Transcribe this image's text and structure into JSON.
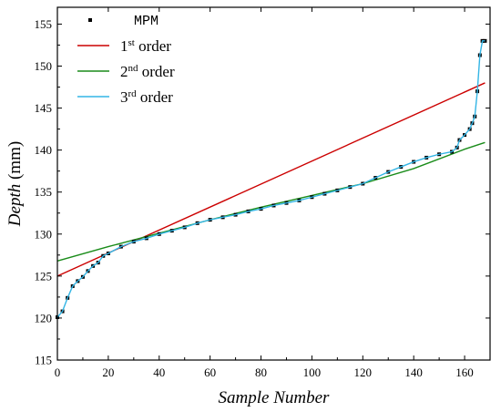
{
  "chart_data": {
    "type": "scatter",
    "xlabel": "Sample Number",
    "ylabel": "Depth",
    "ylabel_unit": "(mm)",
    "xlim": [
      0,
      170
    ],
    "ylim": [
      115,
      157
    ],
    "xticks": [
      0,
      20,
      40,
      60,
      80,
      100,
      120,
      140,
      160
    ],
    "yticks": [
      115,
      120,
      125,
      130,
      135,
      140,
      145,
      150,
      155
    ],
    "legend_position": "top-left",
    "series": [
      {
        "name": "MPM",
        "kind": "points",
        "color": "#000000",
        "x": [
          0,
          2,
          4,
          6,
          8,
          10,
          12,
          14,
          16,
          18,
          20,
          25,
          30,
          35,
          40,
          45,
          50,
          55,
          60,
          65,
          70,
          75,
          80,
          85,
          90,
          95,
          100,
          105,
          110,
          115,
          120,
          125,
          130,
          135,
          140,
          145,
          150,
          155,
          157,
          158,
          160,
          162,
          163,
          164,
          165,
          166,
          167,
          168
        ],
        "y": [
          120.1,
          120.8,
          122.4,
          123.8,
          124.4,
          124.9,
          125.6,
          126.2,
          126.6,
          127.4,
          127.7,
          128.5,
          129.1,
          129.5,
          130.0,
          130.4,
          130.8,
          131.3,
          131.7,
          132.0,
          132.3,
          132.7,
          133.0,
          133.4,
          133.7,
          134.0,
          134.4,
          134.8,
          135.2,
          135.6,
          136.0,
          136.7,
          137.4,
          138.0,
          138.6,
          139.1,
          139.5,
          139.8,
          140.3,
          141.2,
          141.8,
          142.5,
          143.2,
          144.0,
          147.0,
          151.3,
          153.0,
          153.0
        ]
      },
      {
        "name": "1st order",
        "kind": "line",
        "color": "#cc0000",
        "x": [
          0,
          168
        ],
        "y": [
          125.0,
          148.0
        ]
      },
      {
        "name": "2nd order",
        "kind": "line",
        "color": "#1a8c1a",
        "x": [
          0,
          20,
          40,
          60,
          80,
          100,
          120,
          140,
          160,
          168
        ],
        "y": [
          126.8,
          128.5,
          130.1,
          131.7,
          133.2,
          134.6,
          136.0,
          137.8,
          140.1,
          140.9
        ]
      },
      {
        "name": "3rd order",
        "kind": "line",
        "color": "#33b5e5",
        "x": [
          0,
          2,
          4,
          6,
          8,
          10,
          12,
          14,
          16,
          18,
          20,
          25,
          30,
          35,
          40,
          45,
          50,
          55,
          60,
          65,
          70,
          75,
          80,
          85,
          90,
          95,
          100,
          105,
          110,
          115,
          120,
          125,
          130,
          135,
          140,
          145,
          150,
          155,
          157,
          158,
          160,
          162,
          163,
          164,
          165,
          166,
          167,
          168
        ],
        "y": [
          120.1,
          120.8,
          122.4,
          123.8,
          124.4,
          124.9,
          125.6,
          126.2,
          126.6,
          127.4,
          127.7,
          128.5,
          129.1,
          129.5,
          130.0,
          130.4,
          130.8,
          131.3,
          131.7,
          132.0,
          132.3,
          132.7,
          133.0,
          133.4,
          133.7,
          134.0,
          134.4,
          134.8,
          135.2,
          135.6,
          136.0,
          136.7,
          137.4,
          138.0,
          138.6,
          139.1,
          139.5,
          139.8,
          140.3,
          141.2,
          141.8,
          142.5,
          143.2,
          144.0,
          147.0,
          151.3,
          153.0,
          153.0
        ]
      }
    ],
    "legend": [
      {
        "label": "MPM",
        "sup": "",
        "rest": ""
      },
      {
        "label": "1",
        "sup": "st",
        "rest": " order"
      },
      {
        "label": "2",
        "sup": "nd",
        "rest": " order"
      },
      {
        "label": "3",
        "sup": "rd",
        "rest": " order"
      }
    ]
  }
}
